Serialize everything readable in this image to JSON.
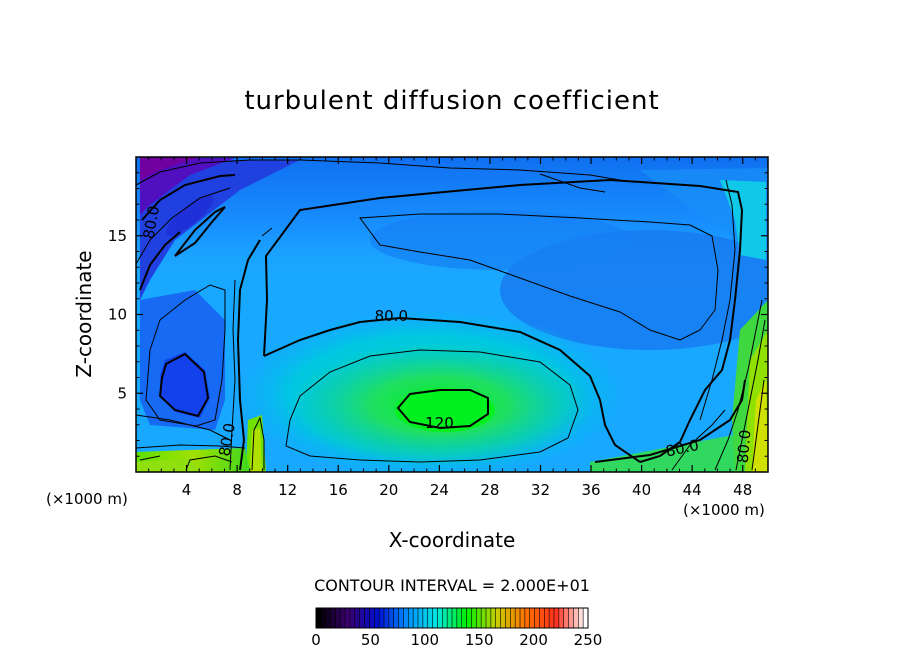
{
  "chart_data": {
    "type": "heatmap",
    "title": "turbulent diffusion coefficient",
    "xlabel": "X-coordinate",
    "ylabel": "Z-coordinate",
    "x_unit": "(×1000 m)",
    "y_unit": "(×1000 m)",
    "xlim": [
      0,
      50
    ],
    "ylim": [
      0,
      20
    ],
    "xticks": [
      4,
      8,
      12,
      16,
      20,
      24,
      28,
      32,
      36,
      40,
      44,
      48
    ],
    "yticks": [
      5,
      10,
      15
    ],
    "contour_interval_text": "CONTOUR INTERVAL = 2.000E+01",
    "colorbar": {
      "min": 0,
      "max": 250,
      "tick_values": [
        0,
        50,
        100,
        150,
        200,
        250
      ],
      "colors": [
        "#000000",
        "#3a0070",
        "#0010d0",
        "#0090ff",
        "#00e8e0",
        "#00f000",
        "#c8d000",
        "#ff7000",
        "#ff3020",
        "#ffffff"
      ]
    },
    "contour_labels": [
      {
        "text": "80.0",
        "x": 20.2,
        "z": 9.6
      },
      {
        "text": "120.",
        "x": 24.2,
        "z": 2.8
      },
      {
        "text": "80.0",
        "x": 43.3,
        "z": 1.2
      },
      {
        "text": "80.0",
        "x": 1.6,
        "z": 15.8
      },
      {
        "text": "80.0",
        "x": 7.6,
        "z": 2.0
      },
      {
        "text": "80.0",
        "x": 48.5,
        "z": 1.6
      }
    ]
  }
}
